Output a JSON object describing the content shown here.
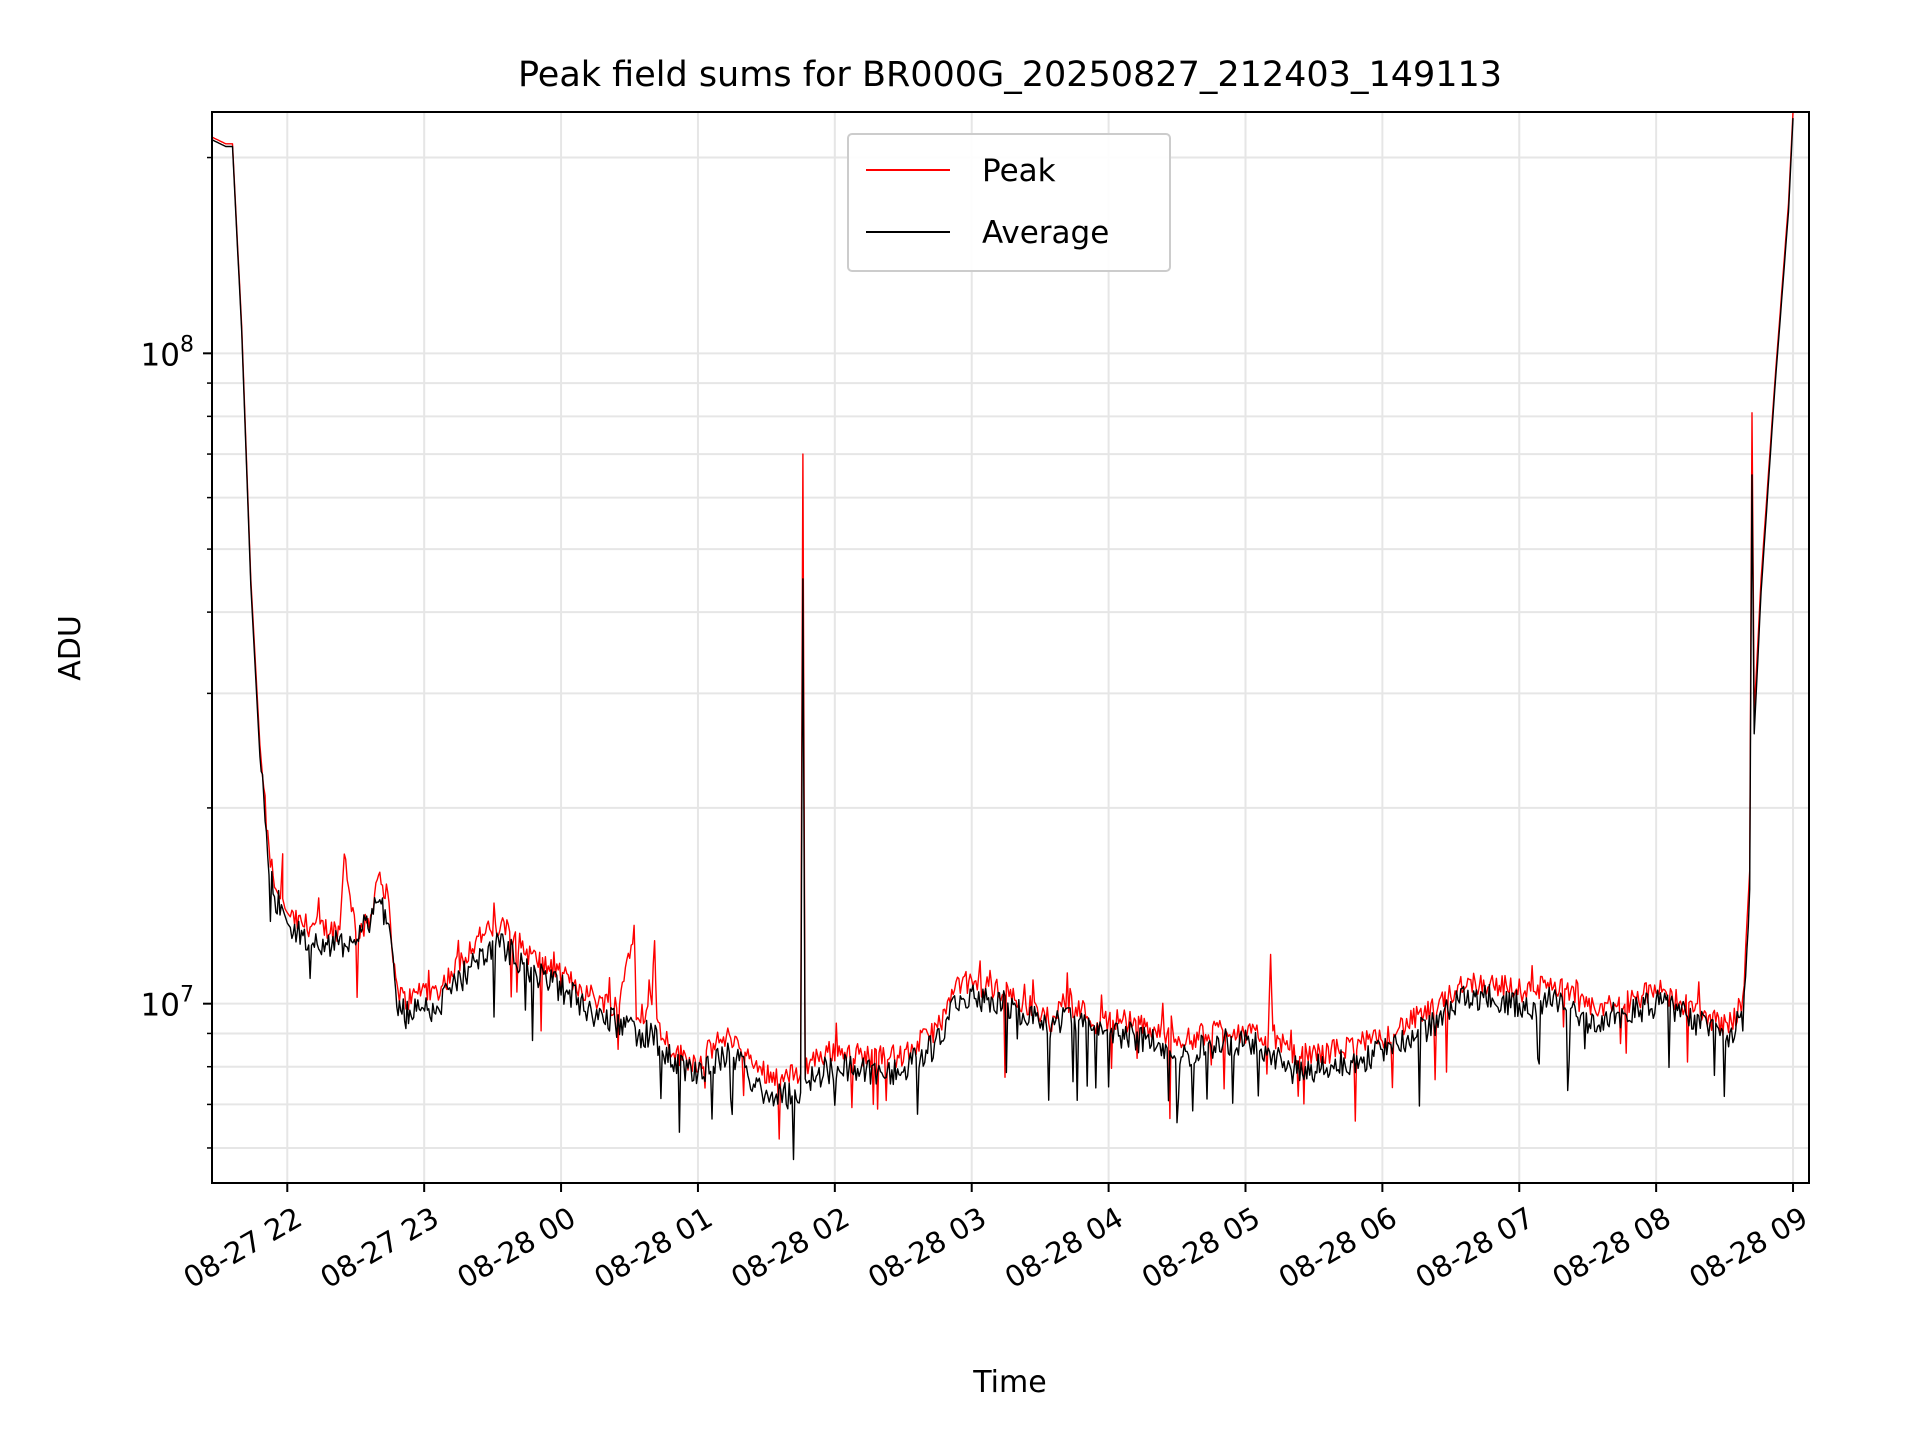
{
  "chart_data": {
    "type": "line",
    "title": "Peak field sums for BR000G_20250827_212403_149113",
    "xlabel": "Time",
    "ylabel": "ADU",
    "x_scale": "time",
    "y_scale": "log",
    "xlim": [
      "08-27 21:27",
      "08-28 09:07"
    ],
    "ylim": [
      5300000,
      235000000
    ],
    "x_ticks": [
      "08-27 22",
      "08-27 23",
      "08-28 00",
      "08-28 01",
      "08-28 02",
      "08-28 03",
      "08-28 04",
      "08-28 05",
      "08-28 06",
      "08-28 07",
      "08-28 08",
      "08-28 09"
    ],
    "x_tick_times": [
      "08-27 22:00",
      "08-27 23:00",
      "08-28 00:00",
      "08-28 01:00",
      "08-28 02:00",
      "08-28 03:00",
      "08-28 04:00",
      "08-28 05:00",
      "08-28 06:00",
      "08-28 07:00",
      "08-28 08:00",
      "08-28 09:00"
    ],
    "y_major_ticks": [
      {
        "value": 10000000,
        "base": "10",
        "exp": "7"
      },
      {
        "value": 100000000,
        "base": "10",
        "exp": "8"
      }
    ],
    "y_minor_ticks": [
      6000000,
      7000000,
      8000000,
      9000000,
      20000000,
      30000000,
      40000000,
      50000000,
      60000000,
      70000000,
      80000000,
      90000000,
      200000000
    ],
    "grid": true,
    "legend_position": "upper center",
    "series": [
      {
        "name": "Peak",
        "color": "#ff0000",
        "x": [
          "08-27 21:27",
          "08-27 21:33",
          "08-27 21:36",
          "08-27 21:40",
          "08-27 21:44",
          "08-27 21:48",
          "08-27 21:52",
          "08-27 21:55",
          "08-27 21:57",
          "08-27 21:58",
          "08-27 21:58",
          "08-27 21:59",
          "08-27 22:00",
          "08-27 22:02",
          "08-27 22:05",
          "08-27 22:10",
          "08-27 22:15",
          "08-27 22:20",
          "08-27 22:23",
          "08-27 22:25",
          "08-27 22:30",
          "08-27 22:36",
          "08-27 22:40",
          "08-27 22:44",
          "08-27 22:47",
          "08-27 22:48",
          "08-27 22:52",
          "08-27 22:56",
          "08-27 22:59",
          "08-27 23:05",
          "08-27 23:15",
          "08-27 23:25",
          "08-27 23:35",
          "08-27 23:45",
          "08-27 23:55",
          "08-28 00:05",
          "08-28 00:15",
          "08-28 00:25",
          "08-28 00:32",
          "08-28 00:33",
          "08-28 00:38",
          "08-28 00:41",
          "08-28 00:42",
          "08-28 00:50",
          "08-28 01:00",
          "08-28 01:08",
          "08-28 01:15",
          "08-28 01:25",
          "08-28 01:35",
          "08-28 01:45",
          "08-28 01:46",
          "08-28 01:47",
          "08-28 01:50",
          "08-28 02:00",
          "08-28 02:15",
          "08-28 02:30",
          "08-28 02:45",
          "08-28 02:55",
          "08-28 03:08",
          "08-28 03:20",
          "08-28 03:35",
          "08-28 03:40",
          "08-28 03:50",
          "08-28 03:55",
          "08-28 04:05",
          "08-28 04:20",
          "08-28 04:35",
          "08-28 04:50",
          "08-28 05:05",
          "08-28 05:10",
          "08-28 05:11",
          "08-28 05:12",
          "08-28 05:20",
          "08-28 05:35",
          "08-28 05:50",
          "08-28 06:00",
          "08-28 06:05",
          "08-28 06:15",
          "08-28 06:25",
          "08-28 06:35",
          "08-28 06:50",
          "08-28 07:05",
          "08-28 07:15",
          "08-28 07:30",
          "08-28 07:45",
          "08-28 08:00",
          "08-28 08:15",
          "08-28 08:28",
          "08-28 08:33",
          "08-28 08:38",
          "08-28 08:41",
          "08-28 08:42",
          "08-28 08:43",
          "08-28 08:46",
          "08-28 08:52",
          "08-28 08:58",
          "08-28 09:00"
        ],
        "y": [
          215000000,
          210000000,
          210000000,
          110000000,
          45000000,
          25000000,
          17000000,
          15000000,
          14500000,
          17000000,
          14500000,
          14000000,
          13800000,
          13500000,
          13300000,
          13200000,
          13100000,
          13000000,
          13000000,
          17000000,
          12900000,
          13300000,
          16000000,
          14500000,
          11500000,
          10500000,
          10100000,
          10300000,
          10600000,
          10400000,
          11500000,
          12800000,
          13100000,
          12000000,
          11300000,
          10800000,
          10200000,
          9900000,
          13200000,
          9800000,
          9600000,
          12500000,
          9300000,
          8400000,
          8100000,
          8700000,
          8900000,
          8000000,
          7700000,
          7800000,
          70000000,
          8000000,
          8200000,
          8500000,
          8300000,
          8300000,
          9200000,
          10800000,
          10600000,
          10200000,
          9400000,
          10100000,
          9700000,
          9300000,
          9500000,
          9100000,
          8800000,
          9200000,
          8900000,
          9000000,
          11900000,
          9000000,
          8300000,
          8400000,
          8700000,
          8800000,
          9100000,
          9500000,
          9900000,
          10800000,
          10700000,
          10400000,
          10800000,
          9800000,
          10000000,
          10500000,
          9900000,
          9300000,
          9400000,
          10000000,
          16000000,
          81000000,
          28000000,
          45000000,
          90000000,
          170000000,
          235000000
        ]
      },
      {
        "name": "Average",
        "color": "#000000",
        "x": [
          "08-27 21:27",
          "08-27 21:33",
          "08-27 21:36",
          "08-27 21:40",
          "08-27 21:44",
          "08-27 21:48",
          "08-27 21:52",
          "08-27 21:55",
          "08-27 21:58",
          "08-27 22:00",
          "08-27 22:02",
          "08-27 22:05",
          "08-27 22:10",
          "08-27 22:15",
          "08-27 22:20",
          "08-27 22:25",
          "08-27 22:30",
          "08-27 22:36",
          "08-27 22:40",
          "08-27 22:44",
          "08-27 22:47",
          "08-27 22:48",
          "08-27 22:52",
          "08-27 22:56",
          "08-27 22:59",
          "08-27 23:05",
          "08-27 23:15",
          "08-27 23:25",
          "08-27 23:35",
          "08-27 23:45",
          "08-27 23:55",
          "08-28 00:05",
          "08-28 00:15",
          "08-28 00:25",
          "08-28 00:35",
          "08-28 00:40",
          "08-28 00:50",
          "08-28 01:00",
          "08-28 01:08",
          "08-28 01:15",
          "08-28 01:25",
          "08-28 01:35",
          "08-28 01:45",
          "08-28 01:46",
          "08-28 01:47",
          "08-28 01:50",
          "08-28 02:00",
          "08-28 02:15",
          "08-28 02:30",
          "08-28 02:45",
          "08-28 02:55",
          "08-28 03:08",
          "08-28 03:20",
          "08-28 03:35",
          "08-28 03:40",
          "08-28 03:50",
          "08-28 04:05",
          "08-28 04:20",
          "08-28 04:35",
          "08-28 04:50",
          "08-28 05:05",
          "08-28 05:20",
          "08-28 05:35",
          "08-28 05:50",
          "08-28 06:00",
          "08-28 06:05",
          "08-28 06:15",
          "08-28 06:25",
          "08-28 06:35",
          "08-28 06:50",
          "08-28 07:05",
          "08-28 07:15",
          "08-28 07:30",
          "08-28 07:45",
          "08-28 08:00",
          "08-28 08:15",
          "08-28 08:28",
          "08-28 08:33",
          "08-28 08:38",
          "08-28 08:41",
          "08-28 08:42",
          "08-28 08:43",
          "08-28 08:46",
          "08-28 08:52",
          "08-28 08:58",
          "08-28 09:00"
        ],
        "y": [
          213000000,
          208000000,
          208000000,
          108000000,
          44000000,
          24000000,
          16500000,
          14500000,
          14000000,
          13300000,
          13000000,
          12800000,
          12600000,
          12400000,
          12300000,
          12400000,
          12700000,
          13500000,
          14500000,
          13500000,
          11000000,
          10000000,
          9600000,
          9800000,
          10000000,
          9800000,
          10800000,
          12000000,
          12300000,
          11400000,
          10800000,
          10300000,
          9600000,
          9300000,
          9000000,
          9000000,
          8000000,
          7700000,
          8200000,
          8400000,
          7500000,
          7200000,
          7300000,
          45000000,
          7500000,
          7700000,
          8000000,
          7900000,
          7900000,
          8700000,
          10300000,
          10200000,
          9800000,
          9100000,
          9600000,
          9300000,
          9000000,
          8700000,
          8400000,
          8700000,
          8700000,
          7900000,
          8000000,
          8200000,
          8400000,
          8700000,
          9000000,
          9400000,
          10300000,
          10200000,
          9900000,
          10300000,
          9400000,
          9600000,
          10000000,
          9500000,
          8900000,
          9000000,
          9500000,
          15000000,
          65000000,
          26000000,
          43000000,
          88000000,
          165000000,
          230000000
        ]
      }
    ]
  }
}
